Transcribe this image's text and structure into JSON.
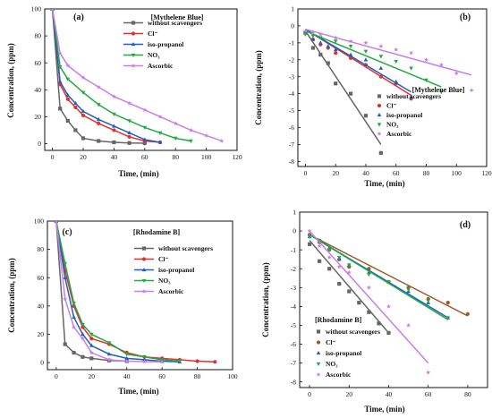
{
  "figure": {
    "panels": [
      "a",
      "b",
      "c",
      "d"
    ]
  },
  "chart_data": [
    {
      "id": "a",
      "type": "line",
      "panel_label": "(a)",
      "legend_title": "[Mythelene Blue]",
      "xlabel": "Time, (min)",
      "ylabel": "Concentration, (ppm)",
      "xlim": [
        -5,
        120
      ],
      "ylim": [
        -5,
        100
      ],
      "xticks": [
        0,
        20,
        40,
        60,
        80,
        100,
        120
      ],
      "yticks": [
        0,
        20,
        40,
        60,
        80,
        100
      ],
      "xtick_labels": [
        "0",
        "20",
        "40",
        "60",
        "80",
        "100",
        "120"
      ],
      "ytick_labels": [
        "0",
        "20",
        "40",
        "60",
        "80",
        "100"
      ],
      "legend_pos": "top-right",
      "series": [
        {
          "name": "without scavengers",
          "color": "#666666",
          "marker": "square",
          "x": [
            0,
            5,
            10,
            15,
            20,
            30,
            40,
            50,
            60
          ],
          "y": [
            100,
            26,
            17,
            10,
            4,
            2,
            1,
            0.5,
            0.3
          ]
        },
        {
          "name": "Cl⁻",
          "color": "#e3302c",
          "marker": "circle",
          "x": [
            0,
            5,
            10,
            15,
            20,
            30,
            40,
            50,
            60,
            70
          ],
          "y": [
            100,
            44,
            33,
            27,
            21,
            15,
            10,
            5,
            2,
            1
          ]
        },
        {
          "name": "iso-propanol",
          "color": "#1f5fbf",
          "marker": "triangle-up",
          "x": [
            0,
            5,
            10,
            15,
            20,
            30,
            40,
            50,
            60,
            70
          ],
          "y": [
            100,
            46,
            36,
            30,
            24,
            18,
            13,
            8,
            3,
            1
          ]
        },
        {
          "name": "NO₃",
          "color": "#22a845",
          "marker": "triangle-down",
          "x": [
            0,
            5,
            10,
            20,
            30,
            40,
            50,
            60,
            70,
            80,
            90
          ],
          "y": [
            100,
            57,
            48,
            38,
            29,
            22,
            17,
            12,
            8,
            4,
            2
          ]
        },
        {
          "name": "Ascorbic",
          "color": "#c77ee6",
          "marker": "star",
          "x": [
            0,
            5,
            10,
            20,
            30,
            40,
            50,
            60,
            70,
            80,
            90,
            100,
            110
          ],
          "y": [
            100,
            67,
            58,
            49,
            42,
            35,
            30,
            25,
            20,
            15,
            10,
            6,
            2
          ]
        }
      ]
    },
    {
      "id": "b",
      "type": "scatter",
      "panel_label": "(b)",
      "legend_title": "[Mythelene Blue]",
      "xlabel": "Time, (min)",
      "ylabel": "Concentration, (ppm)",
      "xlim": [
        -5,
        120
      ],
      "ylim": [
        -8.3,
        1
      ],
      "xticks": [
        0,
        20,
        40,
        60,
        80,
        100,
        120
      ],
      "yticks": [
        1,
        0,
        -1,
        -2,
        -3,
        -4,
        -5,
        -6,
        -7,
        -8
      ],
      "xtick_labels": [
        "0",
        "20",
        "40",
        "60",
        "80",
        "100",
        "120"
      ],
      "ytick_labels": [
        "1",
        "0",
        "-1",
        "-2",
        "-3",
        "-4",
        "-5",
        "-6",
        "-7",
        "-8"
      ],
      "legend_pos": "bottom-right",
      "series": [
        {
          "name": "without scavengers",
          "color": "#666666",
          "marker": "square",
          "x": [
            0,
            5,
            10,
            15,
            20,
            30,
            40,
            50
          ],
          "y": [
            -0.4,
            -1.3,
            -1.7,
            -2.2,
            -3.4,
            -4.0,
            -5.3,
            -7.5
          ],
          "fit": [
            [
              0,
              -0.3
            ],
            [
              50,
              -7.0
            ]
          ]
        },
        {
          "name": "Cl⁻",
          "color": "#e3302c",
          "marker": "circle",
          "x": [
            0,
            5,
            10,
            15,
            20,
            30,
            40,
            50,
            60,
            70
          ],
          "y": [
            -0.4,
            -0.8,
            -1.1,
            -1.3,
            -1.6,
            -1.9,
            -2.3,
            -3.0,
            -3.4,
            -4.3
          ],
          "fit": [
            [
              0,
              -0.2
            ],
            [
              70,
              -4.1
            ]
          ]
        },
        {
          "name": "iso-propanol",
          "color": "#1f5fbf",
          "marker": "triangle-up",
          "x": [
            0,
            5,
            10,
            15,
            20,
            30,
            40,
            50,
            60,
            70
          ],
          "y": [
            -0.4,
            -0.8,
            -1.0,
            -1.2,
            -1.4,
            -1.7,
            -2.0,
            -2.5,
            -3.3,
            -4.2
          ],
          "fit": [
            [
              0,
              -0.2
            ],
            [
              70,
              -3.9
            ]
          ]
        },
        {
          "name": "NO₃",
          "color": "#22a845",
          "marker": "triangle-down",
          "x": [
            0,
            5,
            10,
            20,
            30,
            40,
            50,
            60,
            70,
            80,
            90
          ],
          "y": [
            -0.5,
            -0.6,
            -0.7,
            -0.9,
            -1.2,
            -1.5,
            -1.8,
            -2.1,
            -2.5,
            -3.2,
            -3.9
          ],
          "fit": [
            [
              0,
              -0.3
            ],
            [
              90,
              -3.6
            ]
          ]
        },
        {
          "name": "Ascorbic",
          "color": "#c77ee6",
          "marker": "star",
          "x": [
            0,
            5,
            10,
            20,
            30,
            40,
            50,
            60,
            70,
            80,
            90,
            100,
            110
          ],
          "y": [
            -0.3,
            -0.4,
            -0.5,
            -0.7,
            -0.9,
            -1.0,
            -1.2,
            -1.4,
            -1.6,
            -2.0,
            -2.3,
            -2.8,
            -3.8
          ],
          "fit": [
            [
              0,
              -0.2
            ],
            [
              110,
              -2.9
            ]
          ]
        }
      ]
    },
    {
      "id": "c",
      "type": "line",
      "panel_label": "(c)",
      "legend_title": "[Rhodamine B]",
      "xlabel": "Time, (min)",
      "ylabel": "Concentration, (ppm)",
      "xlim": [
        -5,
        100
      ],
      "ylim": [
        -5,
        100
      ],
      "xticks": [
        0,
        20,
        40,
        60,
        80,
        100
      ],
      "yticks": [
        0,
        20,
        40,
        60,
        80,
        100
      ],
      "xtick_labels": [
        "0",
        "20",
        "40",
        "60",
        "80",
        "100"
      ],
      "ytick_labels": [
        "0",
        "20",
        "40",
        "60",
        "80",
        "100"
      ],
      "legend_pos": "top-right",
      "series": [
        {
          "name": "without scavengers",
          "color": "#666666",
          "marker": "square",
          "x": [
            0,
            5,
            10,
            15,
            20,
            30,
            40
          ],
          "y": [
            100,
            13,
            7,
            4,
            3,
            1.5,
            1
          ]
        },
        {
          "name": "Cl⁻",
          "color": "#e3302c",
          "marker": "circle",
          "x": [
            0,
            5,
            10,
            15,
            20,
            30,
            40,
            50,
            60,
            70,
            80,
            90
          ],
          "y": [
            100,
            65,
            40,
            25,
            17,
            13,
            7,
            4,
            3,
            2,
            1,
            0.5
          ]
        },
        {
          "name": "iso-propanol",
          "color": "#1f5fbf",
          "marker": "triangle-up",
          "x": [
            0,
            5,
            10,
            15,
            20,
            30,
            40,
            50,
            60,
            70
          ],
          "y": [
            100,
            60,
            32,
            20,
            12,
            6,
            3,
            2,
            1,
            0.5
          ]
        },
        {
          "name": "NO₃",
          "color": "#22a845",
          "marker": "triangle-down",
          "x": [
            0,
            5,
            10,
            15,
            20,
            30,
            40,
            50,
            60,
            70
          ],
          "y": [
            100,
            70,
            42,
            27,
            20,
            14,
            6,
            4,
            2,
            1
          ]
        },
        {
          "name": "Ascorbic",
          "color": "#c77ee6",
          "marker": "star",
          "x": [
            0,
            5,
            10,
            15,
            20,
            30,
            40,
            50,
            60
          ],
          "y": [
            100,
            45,
            25,
            17,
            7,
            2,
            1,
            0.7,
            0.5
          ]
        }
      ]
    },
    {
      "id": "d",
      "type": "scatter",
      "panel_label": "(d)",
      "legend_title": "[Rhodamine B]",
      "xlabel": "Time, (min)",
      "ylabel": "Concentration, (ppm)",
      "xlim": [
        -5,
        90
      ],
      "ylim": [
        -8.3,
        1
      ],
      "xticks": [
        0,
        20,
        40,
        60,
        80
      ],
      "yticks": [
        1,
        0,
        -1,
        -2,
        -3,
        -4,
        -5,
        -6,
        -7,
        -8
      ],
      "xtick_labels": [
        "0",
        "20",
        "40",
        "60",
        "80"
      ],
      "ytick_labels": [
        "1",
        "0",
        "-1",
        "-2",
        "-3",
        "-4",
        "-5",
        "-6",
        "-7",
        "-8"
      ],
      "legend_pos": "bottom-left",
      "series": [
        {
          "name": "without scavengers",
          "color": "#666666",
          "marker": "square",
          "x": [
            0,
            5,
            10,
            15,
            20,
            25,
            30,
            35,
            40
          ],
          "y": [
            -0.7,
            -1.6,
            -2.0,
            -2.8,
            -3.2,
            -3.8,
            -4.3,
            -4.9,
            -5.4
          ],
          "fit": [
            [
              0,
              -0.5
            ],
            [
              40,
              -5.4
            ]
          ]
        },
        {
          "name": "Cl⁻",
          "color": "#9c5a2c",
          "marker": "circle",
          "x": [
            0,
            5,
            10,
            15,
            20,
            30,
            40,
            50,
            60,
            70,
            80
          ],
          "y": [
            -0.2,
            -0.6,
            -1.0,
            -1.5,
            -1.9,
            -2.0,
            -2.7,
            -3.0,
            -3.6,
            -3.8,
            -4.4
          ],
          "fit": [
            [
              0,
              -0.2
            ],
            [
              80,
              -4.5
            ]
          ]
        },
        {
          "name": "iso-propanol",
          "color": "#1f5fbf",
          "marker": "triangle-up",
          "x": [
            0,
            5,
            10,
            15,
            20,
            30,
            40,
            50,
            60,
            70
          ],
          "y": [
            -0.3,
            -0.5,
            -0.9,
            -1.5,
            -1.8,
            -2.2,
            -2.7,
            -3.2,
            -3.8,
            -4.6
          ],
          "fit": [
            [
              0,
              -0.2
            ],
            [
              70,
              -4.6
            ]
          ]
        },
        {
          "name": "NO₃",
          "color": "#22a845",
          "marker": "triangle-down",
          "x": [
            0,
            5,
            10,
            15,
            20,
            30,
            40,
            50,
            60,
            70
          ],
          "y": [
            -0.3,
            -0.5,
            -1.0,
            -1.4,
            -1.8,
            -2.3,
            -2.7,
            -3.1,
            -3.7,
            -4.6
          ],
          "fit": [
            [
              0,
              -0.2
            ],
            [
              70,
              -4.7
            ]
          ]
        },
        {
          "name": "Ascorbic",
          "color": "#c77ee6",
          "marker": "star",
          "x": [
            0,
            5,
            10,
            15,
            20,
            30,
            40,
            50,
            60
          ],
          "y": [
            0,
            -0.8,
            -1.4,
            -1.9,
            -2.2,
            -3.0,
            -4.0,
            -5.0,
            -7.5
          ],
          "fit": [
            [
              0,
              0
            ],
            [
              60,
              -7.0
            ]
          ]
        }
      ]
    }
  ]
}
